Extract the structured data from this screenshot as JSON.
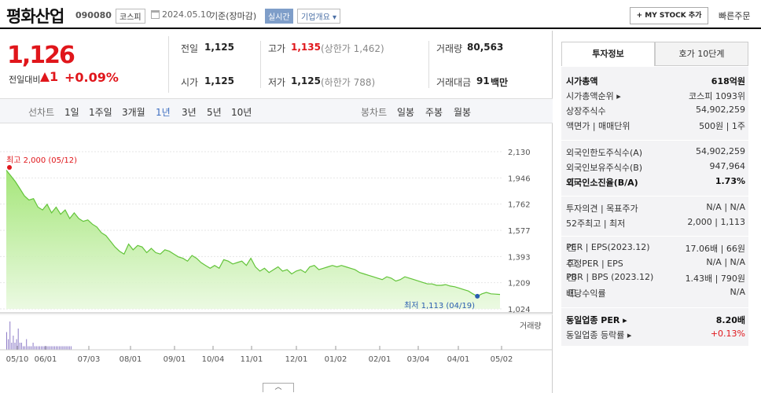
{
  "header": {
    "company_name": "평화산업",
    "stock_code": "090080",
    "market": "코스피",
    "date": "2024.05.10",
    "basis": "기준(장마감)",
    "realtime_badge": "실시간",
    "company_info_button": "기업개요 ▾",
    "mystock_button": "+ MY STOCK 추가",
    "quick_order": "빠른주문"
  },
  "price": {
    "current": "1,126",
    "change_label": "전일대비",
    "change_value": "1",
    "change_pct": "+0.09%"
  },
  "stats": {
    "prev_label": "전일",
    "prev_value": "1,125",
    "high_label": "고가",
    "high_value": "1,135",
    "high_sub": "(상한가 1,462)",
    "volume_label": "거래량",
    "volume_value": "80,563",
    "open_label": "시가",
    "open_value": "1,125",
    "low_label": "저가",
    "low_value": "1,125",
    "low_sub": "(하한가 788)",
    "amount_label": "거래대금",
    "amount_value": "91",
    "amount_unit": "백만"
  },
  "periods": {
    "line_label": "선차트",
    "items": [
      "1일",
      "1주일",
      "3개월",
      "1년",
      "3년",
      "5년",
      "10년"
    ],
    "active": "1년",
    "candle_label": "봉차트",
    "candle_items": [
      "일봉",
      "주봉",
      "월봉"
    ]
  },
  "chart_data": {
    "type": "area",
    "y_ticks": [
      "2,130",
      "1,946",
      "1,762",
      "1,577",
      "1,393",
      "1,209",
      "1,024"
    ],
    "ylim": [
      1024,
      2130
    ],
    "x_ticks": [
      "05/10",
      "06/01",
      "07/03",
      "08/01",
      "09/01",
      "10/04",
      "11/01",
      "12/01",
      "01/02",
      "02/01",
      "03/04",
      "04/01",
      "05/02"
    ],
    "high_annotation": "최고 2,000 (05/12)",
    "low_annotation": "최저 1,113 (04/19)",
    "volume_label": "거래량",
    "series": [
      {
        "values": [
          2000,
          1960,
          1920,
          1870,
          1820,
          1790,
          1800,
          1740,
          1720,
          1760,
          1700,
          1740,
          1690,
          1720,
          1660,
          1700,
          1660,
          1640,
          1650,
          1620,
          1600,
          1560,
          1540,
          1500,
          1460,
          1430,
          1410,
          1480,
          1440,
          1470,
          1460,
          1420,
          1450,
          1420,
          1410,
          1440,
          1430,
          1410,
          1390,
          1380,
          1360,
          1400,
          1380,
          1350,
          1330,
          1310,
          1330,
          1310,
          1370,
          1360,
          1340,
          1350,
          1360,
          1330,
          1380,
          1320,
          1290,
          1310,
          1280,
          1300,
          1320,
          1290,
          1300,
          1270,
          1290,
          1300,
          1280,
          1320,
          1330,
          1300,
          1310,
          1320,
          1330,
          1320,
          1330,
          1320,
          1310,
          1300,
          1280,
          1270,
          1260,
          1250,
          1240,
          1230,
          1250,
          1240,
          1220,
          1230,
          1250,
          1240,
          1230,
          1220,
          1210,
          1200,
          1200,
          1190,
          1190,
          1195,
          1185,
          1180,
          1170,
          1160,
          1150,
          1130,
          1113,
          1130,
          1140,
          1130,
          1128,
          1126
        ]
      }
    ],
    "volume_values": [
      5,
      3,
      8,
      2,
      4,
      2,
      3,
      6,
      2,
      2,
      1,
      1,
      3,
      1,
      1,
      1,
      2,
      1,
      1,
      1,
      1,
      1,
      1,
      1,
      1,
      1,
      1,
      1,
      1,
      1,
      1,
      1,
      1,
      1,
      1,
      1,
      1,
      1,
      1,
      1
    ],
    "grid": true
  },
  "info_panel": {
    "tab_invest": "투자정보",
    "tab_orderbook": "호가 10단계",
    "rows1": [
      {
        "k": "시가총액",
        "v": "618억원",
        "bold": true
      },
      {
        "k": "시가총액순위 ▸",
        "v": "코스피 1093위"
      },
      {
        "k": "상장주식수",
        "v": "54,902,259"
      },
      {
        "k": "액면가 | 매매단위",
        "v": "500원 | 1주"
      }
    ],
    "rows2": [
      {
        "k": "외국인한도주식수(A)",
        "v": "54,902,259"
      },
      {
        "k": "외국인보유주식수(B)",
        "v": "947,964"
      },
      {
        "k": "외국인소진율(B/A)",
        "v": "1.73%",
        "bold": true,
        "q": true
      }
    ],
    "rows3": [
      {
        "k": "투자의견 | 목표주가",
        "v": "N/A | N/A"
      },
      {
        "k": "52주최고 | 최저",
        "v": "2,000 | 1,113"
      }
    ],
    "rows4": [
      {
        "k": "PER | EPS(2023.12)",
        "v": "17.06배 | 66원",
        "q": true
      },
      {
        "k": "추정PER | EPS",
        "v": "N/A | N/A",
        "q": true
      },
      {
        "k": "PBR | BPS (2023.12)",
        "v": "1.43배 | 790원",
        "q": true
      },
      {
        "k": "배당수익률",
        "v": "N/A",
        "q": true
      }
    ],
    "rows5": [
      {
        "k": "동일업종 PER ▸",
        "v": "8.20배",
        "bold": true
      },
      {
        "k": "동일업종 등락률 ▸",
        "v": "+0.13%",
        "red": true
      }
    ]
  }
}
